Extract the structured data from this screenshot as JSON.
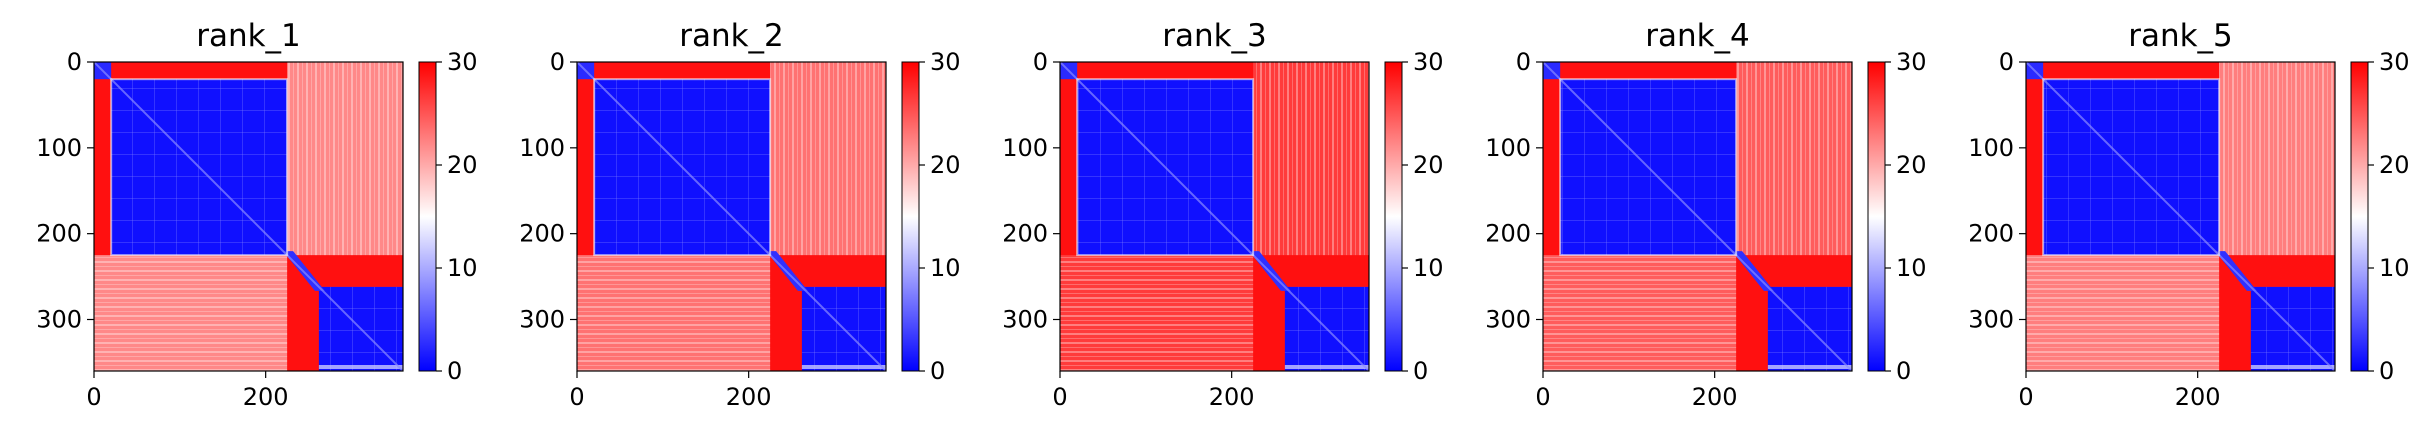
{
  "chart_data": [
    {
      "type": "heatmap",
      "title": "rank_1",
      "variant": 1
    },
    {
      "type": "heatmap",
      "title": "rank_2",
      "variant": 2
    },
    {
      "type": "heatmap",
      "title": "rank_3",
      "variant": 3
    },
    {
      "type": "heatmap",
      "title": "rank_4",
      "variant": 4
    },
    {
      "type": "heatmap",
      "title": "rank_5",
      "variant": 5
    }
  ],
  "shared": {
    "n_residues": 360,
    "x_ticks": [
      0,
      200
    ],
    "y_ticks": [
      0,
      100,
      200,
      300
    ],
    "colorbar_ticks": [
      0,
      10,
      20,
      30
    ],
    "value_range": [
      0,
      30
    ],
    "colormap": [
      "#0000ff",
      "#ffffff",
      "#ff0000"
    ],
    "domains": [
      [
        0,
        225
      ],
      [
        262,
        360
      ]
    ]
  }
}
